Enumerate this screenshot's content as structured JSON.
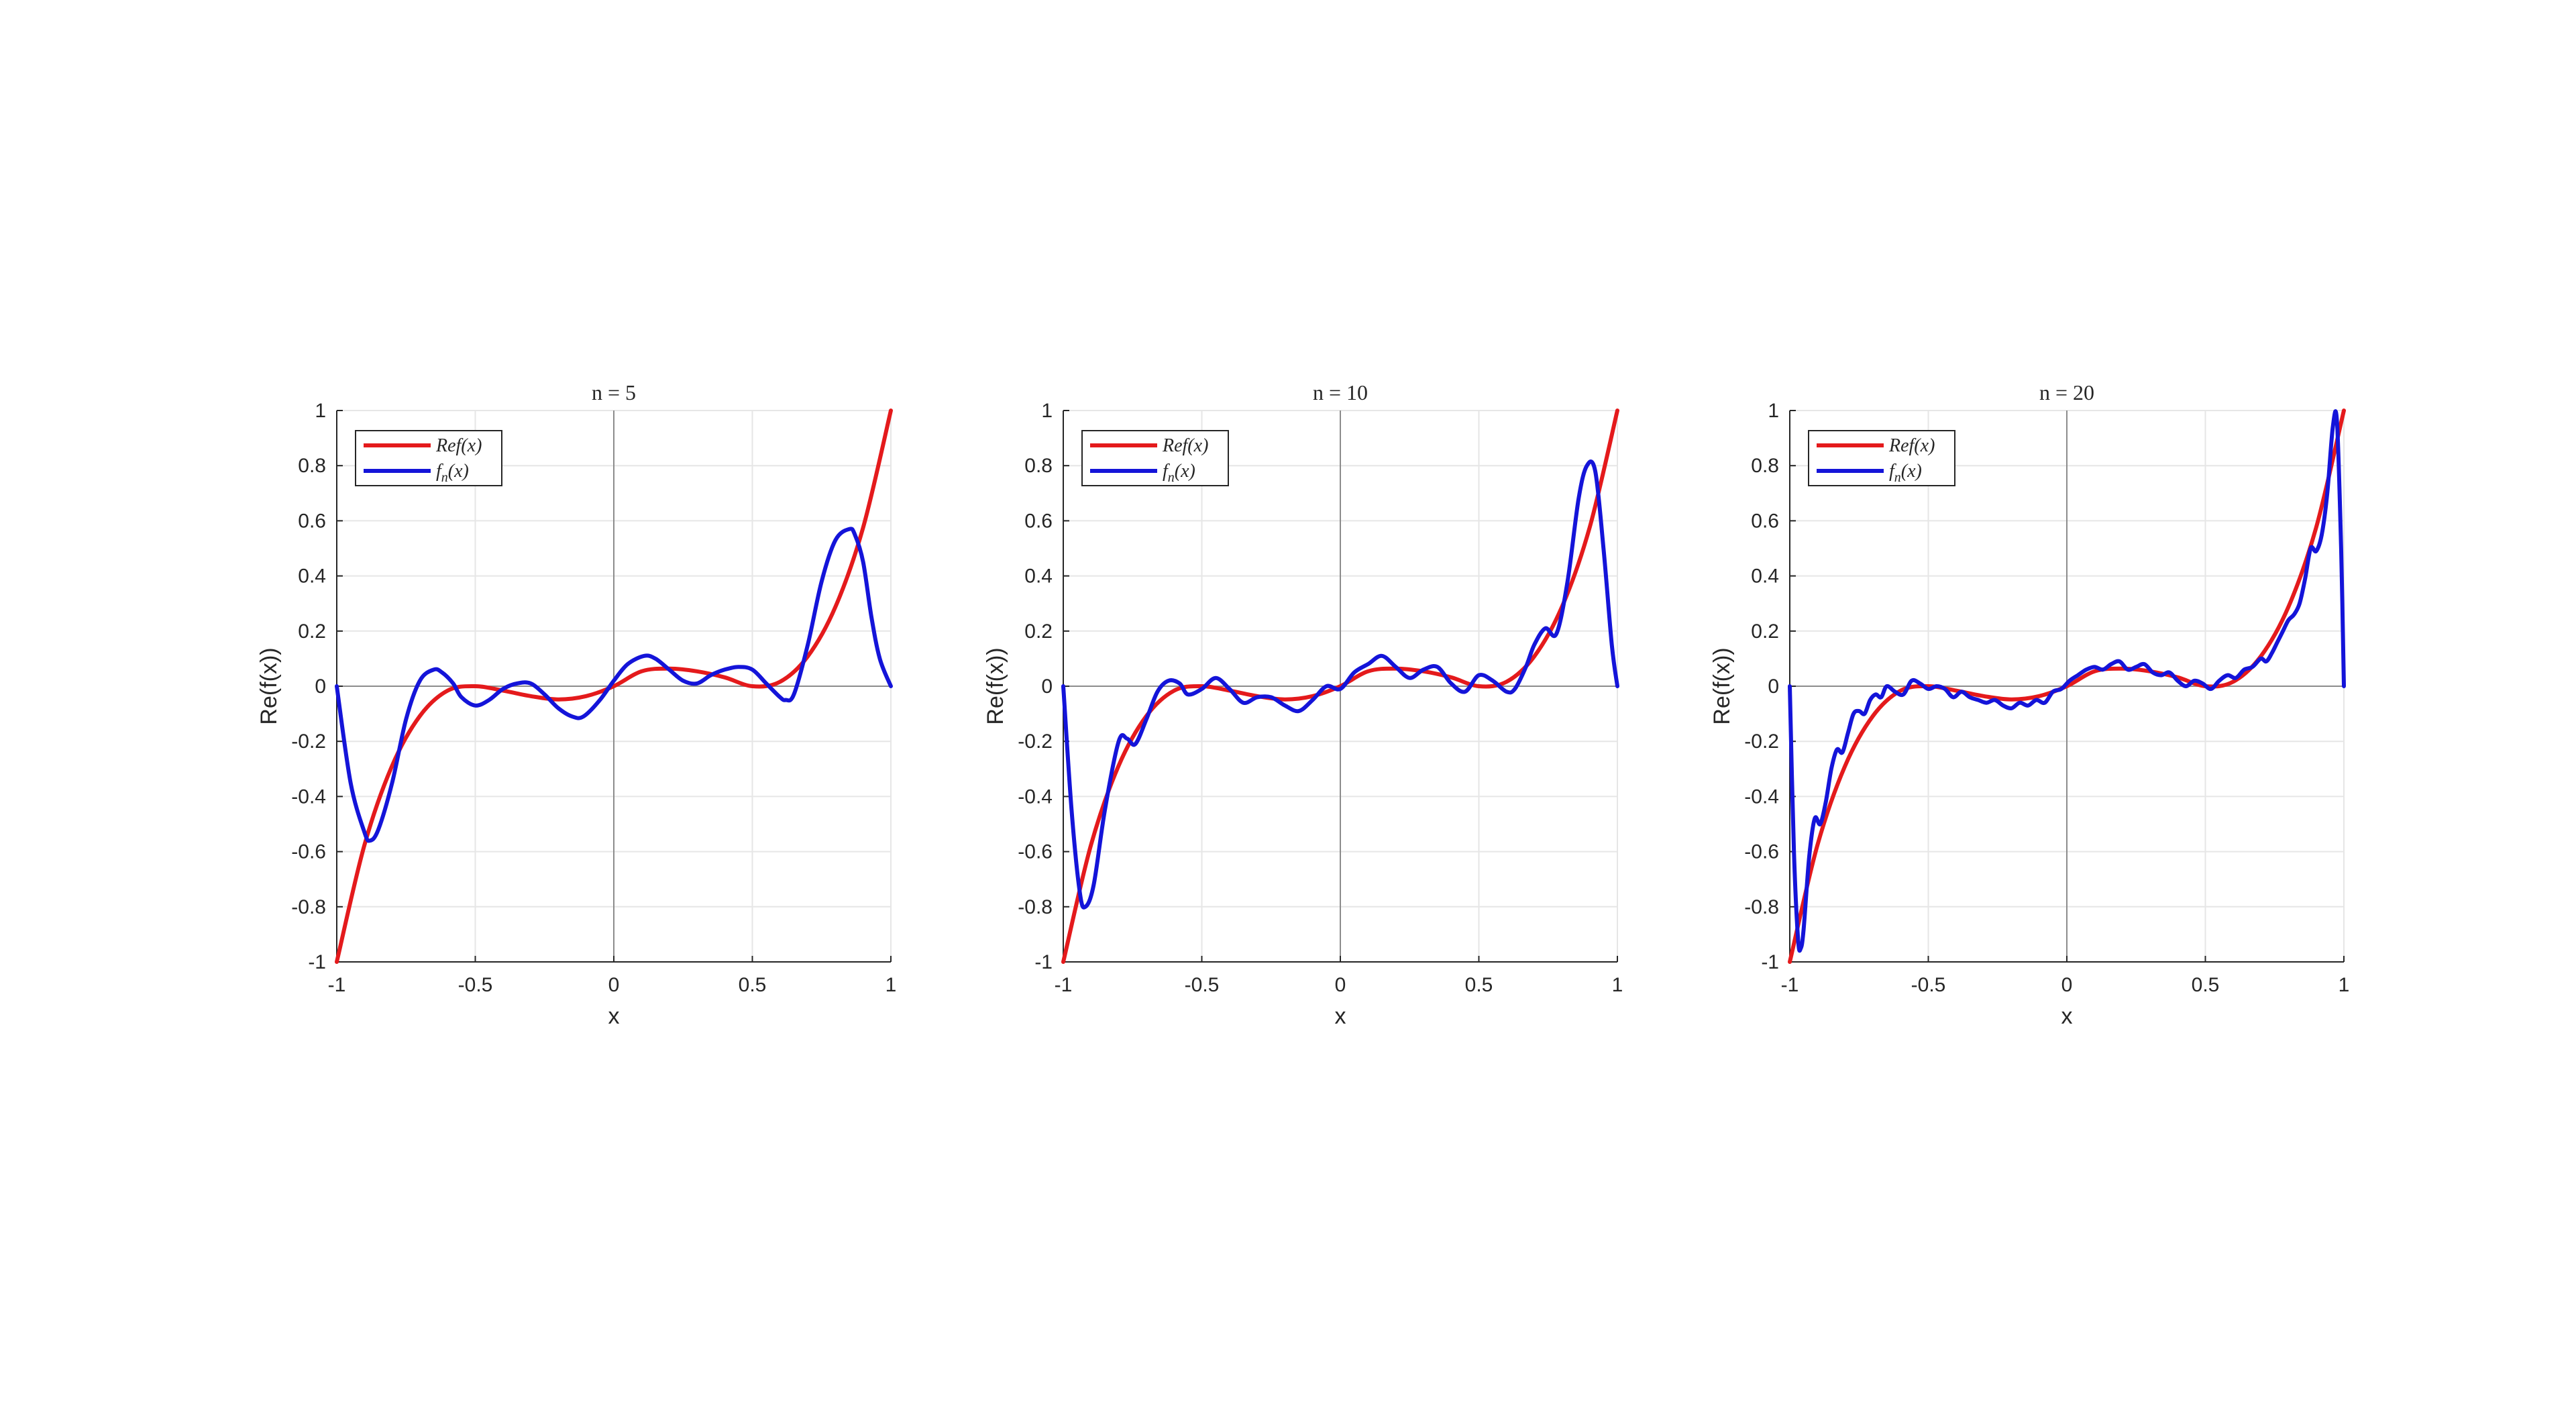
{
  "chart_data": [
    {
      "type": "line",
      "title": "n = 5",
      "xlabel": "x",
      "ylabel": "Re(f(x))",
      "xlim": [
        -1,
        1
      ],
      "ylim": [
        -1,
        1
      ],
      "xticks": [
        -1,
        -0.5,
        0,
        0.5,
        1
      ],
      "xtick_labels": [
        "-1",
        "-0.5",
        "0",
        "0.5",
        "1"
      ],
      "yticks": [
        -1,
        -0.8,
        -0.6,
        -0.4,
        -0.2,
        0,
        0.2,
        0.4,
        0.6,
        0.8,
        1
      ],
      "ytick_labels": [
        "-1",
        "-0.8",
        "-0.6",
        "-0.4",
        "-0.2",
        "0",
        "0.2",
        "0.4",
        "0.6",
        "0.8",
        "1"
      ],
      "grid": true,
      "legend_position": "top-left",
      "series": [
        {
          "name": "Ref(x)",
          "color": "#e41a1c",
          "x": [
            -1,
            -0.9,
            -0.8,
            -0.7,
            -0.6,
            -0.5,
            -0.4,
            -0.3,
            -0.2,
            -0.1,
            0,
            0.1,
            0.2,
            0.3,
            0.4,
            0.5,
            0.6,
            0.7,
            0.8,
            0.9,
            1
          ],
          "y": [
            -1,
            -0.576,
            -0.288,
            -0.108,
            -0.016,
            0,
            -0.016,
            -0.036,
            -0.048,
            -0.036,
            0,
            0.054,
            0.064,
            0.054,
            0.032,
            0,
            0.016,
            0.108,
            0.288,
            0.576,
            1
          ]
        },
        {
          "name": "f_n(x)",
          "color": "#1414d9",
          "x": [
            -1,
            -0.95,
            -0.9,
            -0.88,
            -0.85,
            -0.8,
            -0.75,
            -0.7,
            -0.65,
            -0.62,
            -0.58,
            -0.55,
            -0.5,
            -0.45,
            -0.4,
            -0.35,
            -0.3,
            -0.25,
            -0.2,
            -0.15,
            -0.11,
            -0.05,
            0,
            0.05,
            0.11,
            0.15,
            0.2,
            0.25,
            0.3,
            0.35,
            0.4,
            0.45,
            0.5,
            0.55,
            0.6,
            0.62,
            0.65,
            0.7,
            0.75,
            0.8,
            0.85,
            0.87,
            0.9,
            0.93,
            0.96,
            1
          ],
          "y": [
            0,
            -0.35,
            -0.53,
            -0.56,
            -0.52,
            -0.35,
            -0.12,
            0.02,
            0.06,
            0.05,
            0.01,
            -0.04,
            -0.07,
            -0.05,
            -0.01,
            0.01,
            0.01,
            -0.03,
            -0.08,
            -0.11,
            -0.11,
            -0.05,
            0.02,
            0.08,
            0.11,
            0.1,
            0.06,
            0.02,
            0.01,
            0.04,
            0.06,
            0.07,
            0.06,
            0.01,
            -0.04,
            -0.05,
            -0.03,
            0.15,
            0.38,
            0.53,
            0.57,
            0.55,
            0.45,
            0.25,
            0.1,
            0
          ]
        }
      ]
    },
    {
      "type": "line",
      "title": "n = 10",
      "xlabel": "x",
      "ylabel": "Re(f(x))",
      "xlim": [
        -1,
        1
      ],
      "ylim": [
        -1,
        1
      ],
      "xticks": [
        -1,
        -0.5,
        0,
        0.5,
        1
      ],
      "xtick_labels": [
        "-1",
        "-0.5",
        "0",
        "0.5",
        "1"
      ],
      "yticks": [
        -1,
        -0.8,
        -0.6,
        -0.4,
        -0.2,
        0,
        0.2,
        0.4,
        0.6,
        0.8,
        1
      ],
      "ytick_labels": [
        "-1",
        "-0.8",
        "-0.6",
        "-0.4",
        "-0.2",
        "0",
        "0.2",
        "0.4",
        "0.6",
        "0.8",
        "1"
      ],
      "grid": true,
      "legend_position": "top-left",
      "series": [
        {
          "name": "Ref(x)",
          "color": "#e41a1c",
          "x": [
            -1,
            -0.9,
            -0.8,
            -0.7,
            -0.6,
            -0.5,
            -0.4,
            -0.3,
            -0.2,
            -0.1,
            0,
            0.1,
            0.2,
            0.3,
            0.4,
            0.5,
            0.6,
            0.7,
            0.8,
            0.9,
            1
          ],
          "y": [
            -1,
            -0.576,
            -0.288,
            -0.108,
            -0.016,
            0,
            -0.016,
            -0.036,
            -0.048,
            -0.036,
            0,
            0.054,
            0.064,
            0.054,
            0.032,
            0,
            0.016,
            0.108,
            0.288,
            0.576,
            1
          ]
        },
        {
          "name": "f_n(x)",
          "color": "#1414d9",
          "x": [
            -1,
            -0.97,
            -0.94,
            -0.92,
            -0.89,
            -0.85,
            -0.8,
            -0.77,
            -0.74,
            -0.7,
            -0.66,
            -0.62,
            -0.58,
            -0.55,
            -0.5,
            -0.45,
            -0.4,
            -0.35,
            -0.3,
            -0.25,
            -0.2,
            -0.15,
            -0.1,
            -0.05,
            0,
            0.05,
            0.1,
            0.15,
            0.2,
            0.25,
            0.3,
            0.35,
            0.4,
            0.45,
            0.5,
            0.55,
            0.6,
            0.63,
            0.67,
            0.7,
            0.74,
            0.78,
            0.82,
            0.86,
            0.89,
            0.92,
            0.95,
            0.98,
            1
          ],
          "y": [
            0,
            -0.45,
            -0.75,
            -0.8,
            -0.72,
            -0.45,
            -0.2,
            -0.19,
            -0.21,
            -0.12,
            -0.02,
            0.02,
            0.01,
            -0.03,
            -0.01,
            0.03,
            -0.01,
            -0.06,
            -0.04,
            -0.04,
            -0.07,
            -0.09,
            -0.05,
            0.0,
            -0.01,
            0.05,
            0.08,
            0.11,
            0.07,
            0.03,
            0.06,
            0.07,
            0.01,
            -0.02,
            0.04,
            0.02,
            -0.02,
            -0.01,
            0.07,
            0.15,
            0.21,
            0.19,
            0.38,
            0.68,
            0.8,
            0.78,
            0.5,
            0.15,
            0
          ]
        }
      ]
    },
    {
      "type": "line",
      "title": "n = 20",
      "xlabel": "x",
      "ylabel": "Re(f(x))",
      "xlim": [
        -1,
        1
      ],
      "ylim": [
        -1,
        1
      ],
      "xticks": [
        -1,
        -0.5,
        0,
        0.5,
        1
      ],
      "xtick_labels": [
        "-1",
        "-0.5",
        "0",
        "0.5",
        "1"
      ],
      "yticks": [
        -1,
        -0.8,
        -0.6,
        -0.4,
        -0.2,
        0,
        0.2,
        0.4,
        0.6,
        0.8,
        1
      ],
      "ytick_labels": [
        "-1",
        "-0.8",
        "-0.6",
        "-0.4",
        "-0.2",
        "0",
        "0.2",
        "0.4",
        "0.6",
        "0.8",
        "1"
      ],
      "grid": true,
      "legend_position": "top-left",
      "series": [
        {
          "name": "Ref(x)",
          "color": "#e41a1c",
          "x": [
            -1,
            -0.9,
            -0.8,
            -0.7,
            -0.6,
            -0.5,
            -0.4,
            -0.3,
            -0.2,
            -0.1,
            0,
            0.1,
            0.2,
            0.3,
            0.4,
            0.5,
            0.6,
            0.7,
            0.8,
            0.9,
            1
          ],
          "y": [
            -1,
            -0.576,
            -0.288,
            -0.108,
            -0.016,
            0,
            -0.016,
            -0.036,
            -0.048,
            -0.036,
            0,
            0.054,
            0.064,
            0.054,
            0.032,
            0,
            0.016,
            0.108,
            0.288,
            0.576,
            1
          ]
        },
        {
          "name": "f_n(x)",
          "color": "#1414d9",
          "x": [
            -1,
            -0.985,
            -0.97,
            -0.96,
            -0.95,
            -0.93,
            -0.91,
            -0.89,
            -0.87,
            -0.85,
            -0.83,
            -0.81,
            -0.79,
            -0.77,
            -0.75,
            -0.73,
            -0.71,
            -0.69,
            -0.67,
            -0.65,
            -0.62,
            -0.59,
            -0.56,
            -0.53,
            -0.5,
            -0.47,
            -0.44,
            -0.41,
            -0.38,
            -0.35,
            -0.32,
            -0.29,
            -0.26,
            -0.23,
            -0.2,
            -0.17,
            -0.14,
            -0.11,
            -0.08,
            -0.05,
            -0.02,
            0.01,
            0.04,
            0.07,
            0.1,
            0.13,
            0.16,
            0.19,
            0.22,
            0.25,
            0.28,
            0.31,
            0.34,
            0.37,
            0.4,
            0.43,
            0.46,
            0.49,
            0.52,
            0.55,
            0.58,
            0.61,
            0.64,
            0.67,
            0.7,
            0.72,
            0.74,
            0.76,
            0.78,
            0.8,
            0.82,
            0.84,
            0.86,
            0.88,
            0.9,
            0.92,
            0.94,
            0.96,
            0.975,
            0.99,
            1
          ],
          "y": [
            0,
            -0.6,
            -0.92,
            -0.95,
            -0.88,
            -0.62,
            -0.48,
            -0.5,
            -0.42,
            -0.3,
            -0.23,
            -0.24,
            -0.17,
            -0.1,
            -0.09,
            -0.1,
            -0.05,
            -0.03,
            -0.04,
            0.0,
            -0.02,
            -0.03,
            0.02,
            0.01,
            -0.01,
            0.0,
            -0.01,
            -0.04,
            -0.02,
            -0.04,
            -0.05,
            -0.06,
            -0.05,
            -0.07,
            -0.08,
            -0.06,
            -0.07,
            -0.05,
            -0.06,
            -0.02,
            -0.01,
            0.02,
            0.04,
            0.06,
            0.07,
            0.06,
            0.08,
            0.09,
            0.06,
            0.07,
            0.08,
            0.05,
            0.04,
            0.05,
            0.02,
            0.0,
            0.02,
            0.01,
            -0.01,
            0.02,
            0.04,
            0.03,
            0.06,
            0.07,
            0.1,
            0.09,
            0.12,
            0.16,
            0.2,
            0.24,
            0.26,
            0.3,
            0.39,
            0.5,
            0.49,
            0.55,
            0.7,
            0.94,
            0.96,
            0.5,
            0
          ]
        }
      ]
    }
  ]
}
